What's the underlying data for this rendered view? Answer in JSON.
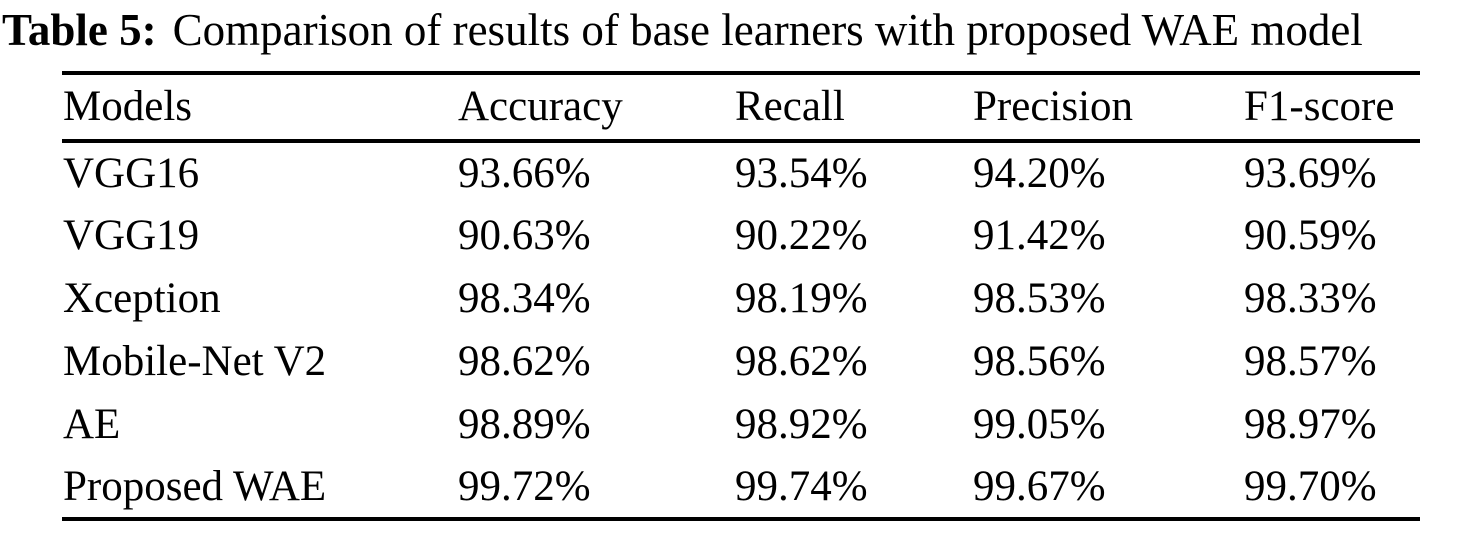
{
  "caption": {
    "label": "Table 5:",
    "text": "Comparison of results of base learners with proposed WAE model"
  },
  "table": {
    "headers": [
      "Models",
      "Accuracy",
      "Recall",
      "Precision",
      "F1-score"
    ],
    "rows": [
      [
        "VGG16",
        "93.66%",
        "93.54%",
        "94.20%",
        "93.69%"
      ],
      [
        "VGG19",
        "90.63%",
        "90.22%",
        "91.42%",
        "90.59%"
      ],
      [
        "Xception",
        "98.34%",
        "98.19%",
        "98.53%",
        "98.33%"
      ],
      [
        "Mobile-Net V2",
        "98.62%",
        "98.62%",
        "98.56%",
        "98.57%"
      ],
      [
        "AE",
        "98.89%",
        "98.92%",
        "99.05%",
        "98.97%"
      ],
      [
        "Proposed WAE",
        "99.72%",
        "99.74%",
        "99.67%",
        "99.70%"
      ]
    ]
  },
  "colors": {
    "text": "#000000",
    "background": "#ffffff",
    "rule": "#000000"
  }
}
